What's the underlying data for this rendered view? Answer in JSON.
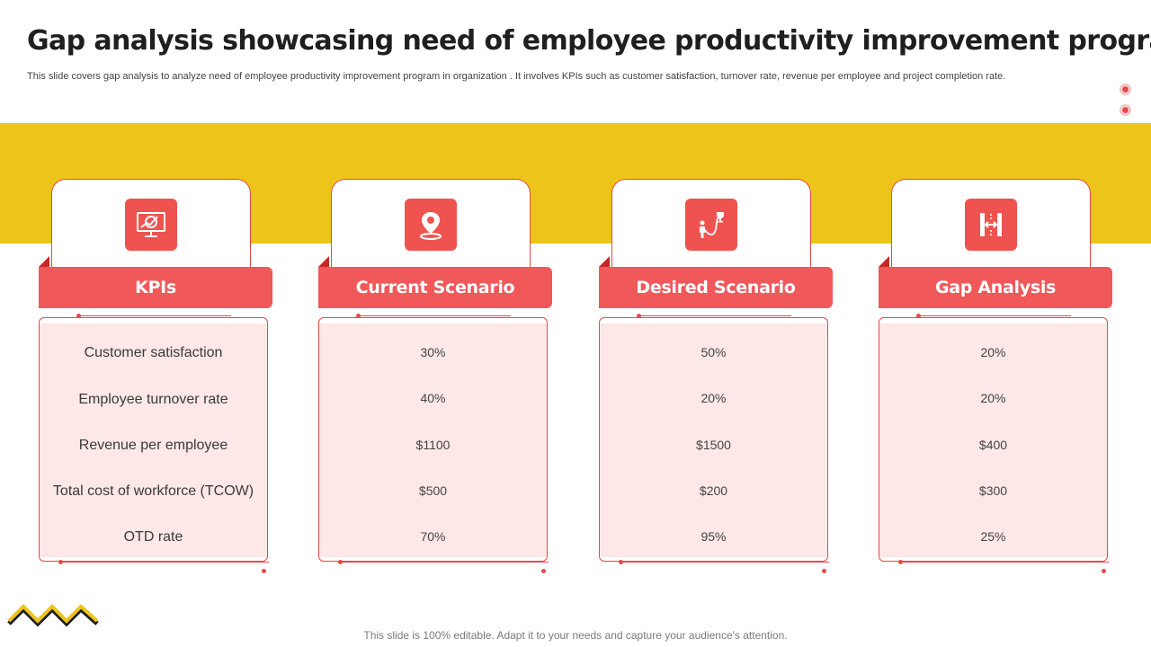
{
  "title": "Gap analysis showcasing need of employee productivity improvement program",
  "subtitle": "This slide covers gap analysis to analyze  need of employee productivity improvement program in organization . It involves KPIs such as customer satisfaction, turnover rate, revenue per employee and project completion rate.",
  "footer": "This slide is 100% editable. Adapt it to your needs and capture your audience's attention.",
  "colors": {
    "accent": "#f0585a",
    "band": "#ecc41a",
    "panel": "#fde7e7"
  },
  "columns": [
    {
      "header": "KPIs",
      "icon": "monitor-chart-icon",
      "rows": [
        "Customer satisfaction",
        "Employee turnover  rate",
        "Revenue  per employee",
        "Total cost of workforce (TCOW)",
        "OTD rate"
      ]
    },
    {
      "header": "Current Scenario",
      "icon": "location-pin-icon",
      "rows": [
        "30%",
        "40%",
        "$1100",
        "$500",
        "70%"
      ]
    },
    {
      "header": "Desired Scenario",
      "icon": "person-goal-icon",
      "rows": [
        "50%",
        "20%",
        "$1500",
        "$200",
        "95%"
      ]
    },
    {
      "header": "Gap Analysis",
      "icon": "gap-measure-icon",
      "rows": [
        "20%",
        "20%",
        "$400",
        "$300",
        "25%"
      ]
    }
  ]
}
